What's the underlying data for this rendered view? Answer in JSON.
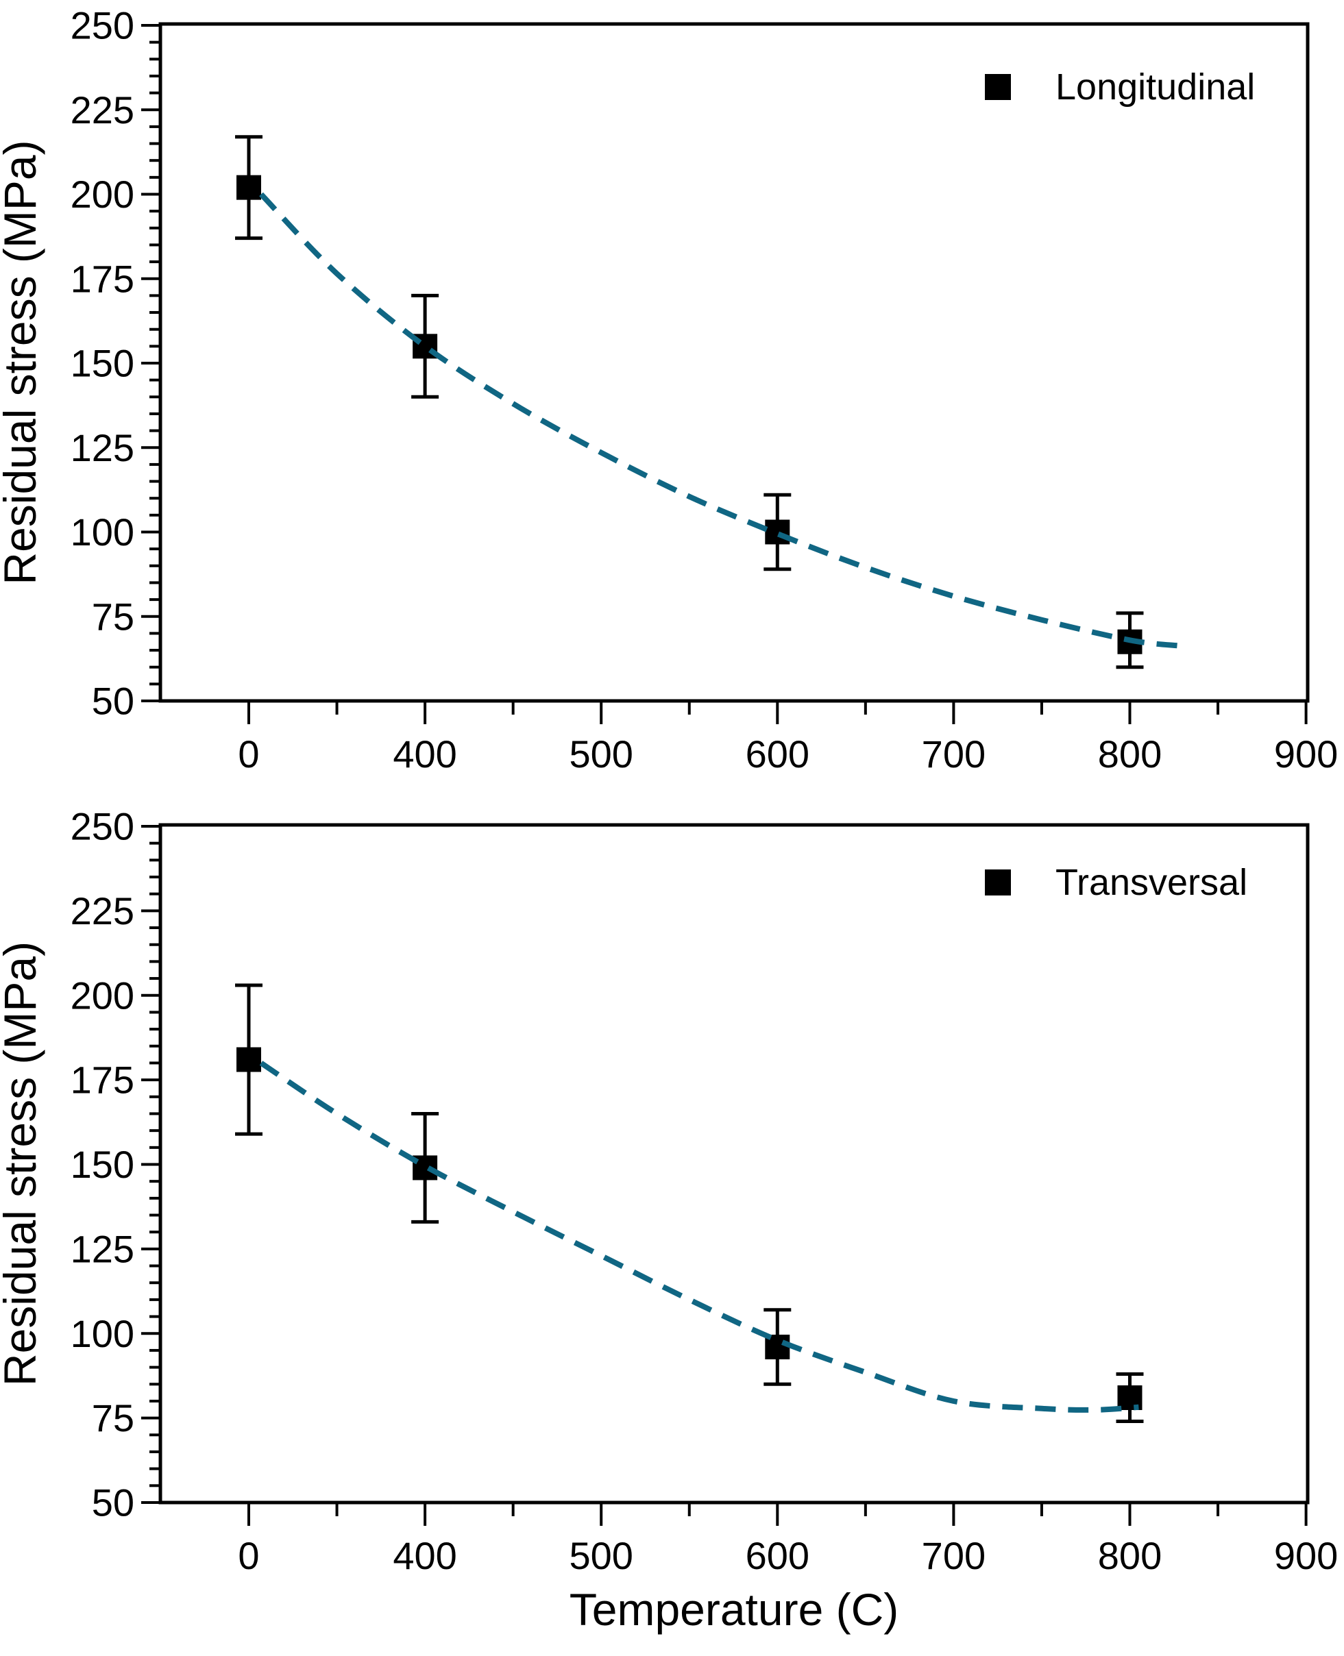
{
  "figure": {
    "background": "#ffffff",
    "text_color": "#000000",
    "frame_color": "#000000",
    "marker_color": "#000000",
    "fit_line_color": "#106683"
  },
  "chart_data": [
    {
      "type": "scatter",
      "legend_label": "Longitudinal",
      "legend_marker": "black-square",
      "legend_position": "top-right",
      "xlabel": "",
      "ylabel": "Residual stress (MPa)",
      "x_tick_labels": [
        "0",
        "400",
        "500",
        "600",
        "700",
        "800",
        "900"
      ],
      "x_tick_values": [
        0,
        400,
        500,
        600,
        700,
        800,
        900
      ],
      "y_tick_values": [
        50,
        75,
        100,
        125,
        150,
        175,
        200,
        225,
        250
      ],
      "ylim": [
        50,
        250
      ],
      "y_minor_step": 5,
      "x_axis_note": "broken scale: 0 then 400-900 equally spaced",
      "grid": false,
      "points": {
        "x": [
          0,
          400,
          600,
          800
        ],
        "y": [
          202,
          155,
          100,
          67.5
        ],
        "y_err_low": [
          187,
          140,
          89,
          60
        ],
        "y_err_high": [
          217,
          170,
          111,
          76
        ]
      },
      "fit_curve": {
        "style": "dashed",
        "x": [
          28,
          200,
          400,
          450,
          500,
          550,
          600,
          650,
          700,
          750,
          800,
          828
        ],
        "y": [
          200,
          176.5,
          155,
          138,
          123.5,
          110.5,
          99.5,
          89.5,
          81,
          74,
          68,
          66.3
        ]
      }
    },
    {
      "type": "scatter",
      "legend_label": "Transversal",
      "legend_marker": "black-square",
      "legend_position": "top-right",
      "xlabel": "Temperature (C)",
      "ylabel": "Residual stress (MPa)",
      "x_tick_labels": [
        "0",
        "400",
        "500",
        "600",
        "700",
        "800",
        "900"
      ],
      "x_tick_values": [
        0,
        400,
        500,
        600,
        700,
        800,
        900
      ],
      "y_tick_values": [
        50,
        75,
        100,
        125,
        150,
        175,
        200,
        225,
        250
      ],
      "ylim": [
        50,
        250
      ],
      "y_minor_step": 5,
      "x_axis_note": "broken scale: 0 then 400-900 equally spaced",
      "grid": false,
      "points": {
        "x": [
          0,
          400,
          600,
          800
        ],
        "y": [
          181,
          149,
          96,
          81
        ],
        "y_err_low": [
          159,
          133,
          85,
          74
        ],
        "y_err_high": [
          203,
          165,
          107,
          88
        ]
      },
      "fit_curve": {
        "style": "dashed",
        "x": [
          28,
          200,
          400,
          450,
          500,
          550,
          600,
          650,
          700,
          750,
          780,
          805
        ],
        "y": [
          180,
          165,
          149.5,
          136,
          123,
          110,
          98,
          88.5,
          80,
          77.8,
          77.4,
          78.2
        ]
      }
    }
  ]
}
